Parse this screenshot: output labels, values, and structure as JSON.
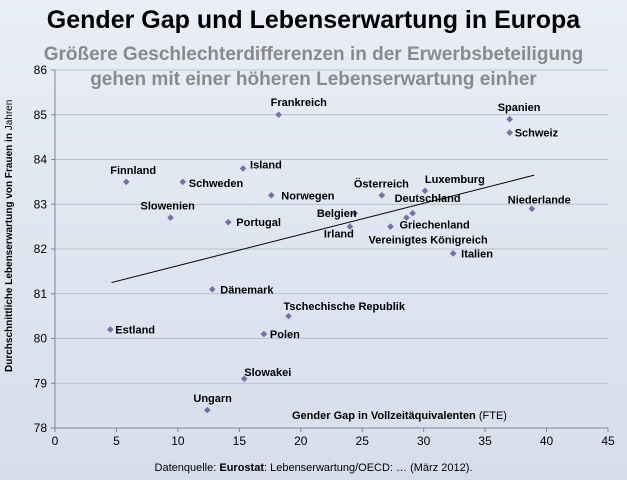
{
  "header": {
    "title": "Gender Gap und Lebenserwartung in Europa",
    "subtitle_line1": "Größere Geschlechterdifferenzen in der Erwerbsbeteiligung",
    "subtitle_line2": "gehen mit einer höheren Lebenserwartung einher"
  },
  "source": {
    "prefix": "Datenquelle: ",
    "org": "Eurostat",
    "rest": ": Lebenserwartung/OECD: … (März 2012)."
  },
  "chart_data": {
    "type": "scatter",
    "title": "Gender Gap und Lebenserwartung in Europa",
    "xlabel_bold": "Gender Gap in Vollzeitäquivalenten",
    "xlabel_normal": " (FTE)",
    "ylabel_bold": "Durchschnittliche Lebenserwartung von Frauen in ",
    "ylabel_normal": "Jahren",
    "xlim": [
      0,
      45
    ],
    "ylim": [
      78,
      86
    ],
    "xticks": [
      0,
      5,
      10,
      15,
      20,
      25,
      30,
      35,
      40,
      45
    ],
    "yticks": [
      78,
      79,
      80,
      81,
      82,
      83,
      84,
      85,
      86
    ],
    "grid": true,
    "marker_color": "#7b6ea8",
    "trendline": {
      "x": [
        4.6,
        39.0
      ],
      "y": [
        81.25,
        83.65
      ]
    },
    "points": [
      {
        "label": "Frankreich",
        "x": 18.2,
        "y": 85.0
      },
      {
        "label": "Spanien",
        "x": 37.0,
        "y": 84.9
      },
      {
        "label": "Schweiz",
        "x": 37.0,
        "y": 84.6
      },
      {
        "label": "Finnland",
        "x": 5.8,
        "y": 83.5
      },
      {
        "label": "Island",
        "x": 15.3,
        "y": 83.8
      },
      {
        "label": "Schweden",
        "x": 10.4,
        "y": 83.5
      },
      {
        "label": "Norwegen",
        "x": 17.6,
        "y": 83.2
      },
      {
        "label": "Österreich",
        "x": 26.6,
        "y": 83.2
      },
      {
        "label": "Luxemburg",
        "x": 30.1,
        "y": 83.3
      },
      {
        "label": "Deutschland",
        "x": 29.1,
        "y": 82.8
      },
      {
        "label": "Niederlande",
        "x": 38.8,
        "y": 82.9
      },
      {
        "label": "Slowenien",
        "x": 9.4,
        "y": 82.7
      },
      {
        "label": "Portugal",
        "x": 14.1,
        "y": 82.6
      },
      {
        "label": "Belgien",
        "x": 24.4,
        "y": 82.8
      },
      {
        "label": "Irland",
        "x": 24.0,
        "y": 82.5
      },
      {
        "label": "Griechenland",
        "x": 28.6,
        "y": 82.7
      },
      {
        "label": "Vereinigtes Königreich",
        "x": 27.3,
        "y": 82.5
      },
      {
        "label": "Italien",
        "x": 32.4,
        "y": 81.9
      },
      {
        "label": "Dänemark",
        "x": 12.8,
        "y": 81.1
      },
      {
        "label": "Tschechische Republik",
        "x": 19.0,
        "y": 80.5
      },
      {
        "label": "Estland",
        "x": 4.5,
        "y": 80.2
      },
      {
        "label": "Polen",
        "x": 17.0,
        "y": 80.1
      },
      {
        "label": "Slowakei",
        "x": 15.4,
        "y": 79.1
      },
      {
        "label": "Ungarn",
        "x": 12.4,
        "y": 78.4
      }
    ]
  }
}
